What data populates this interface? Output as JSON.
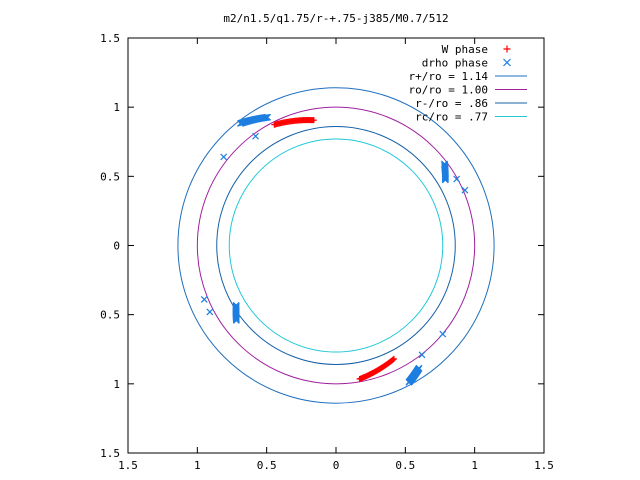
{
  "chart_data": {
    "type": "scatter",
    "title": "m2/n1.5/q1.75/r-+.75-j385/M0.7/512",
    "xlim": [
      -1.5,
      1.5
    ],
    "ylim": [
      -1.5,
      1.5
    ],
    "x_ticks": [
      -1.5,
      -1,
      -0.5,
      0,
      0.5,
      1,
      1.5
    ],
    "y_ticks": [
      -1.5,
      -1,
      -0.5,
      0,
      0.5,
      1,
      1.5
    ],
    "x_tick_labels": [
      "1.5",
      "1",
      "0.5",
      "0",
      "0.5",
      "1",
      "1.5"
    ],
    "y_tick_labels": [
      "1.5",
      "1",
      "0.5",
      "0",
      "0.5",
      "1",
      "1.5"
    ],
    "grid": false,
    "legend_position": "top-right",
    "circles": [
      {
        "name": "r+/ro = 1.14",
        "radius": 1.14,
        "color": "#1f6fbf"
      },
      {
        "name": "ro/ro = 1.00",
        "radius": 1.0,
        "color": "#a020a0"
      },
      {
        "name": "r-/ro = .86",
        "radius": 0.86,
        "color": "#1560a8"
      },
      {
        "name": "rc/ro = .77",
        "radius": 0.77,
        "color": "#20c8d8"
      }
    ],
    "series": [
      {
        "name": "W phase",
        "marker": "+",
        "color": "#ff0000",
        "arcs": [
          {
            "r_from": 0.92,
            "r_to": 0.98,
            "angle_from": 100,
            "angle_to": 117
          },
          {
            "r_from": 0.92,
            "r_to": 0.98,
            "angle_from": -63,
            "angle_to": -80
          }
        ]
      },
      {
        "name": "drho phase",
        "marker": "x",
        "color": "#1e7fe0",
        "arcs": [
          {
            "r_from": 1.05,
            "r_to": 1.12,
            "angle_from": 118,
            "angle_to": 128
          },
          {
            "r_from": 0.92,
            "r_to": 0.98,
            "angle_from": 31,
            "angle_to": 37
          },
          {
            "r_from": 0.84,
            "r_to": 0.9,
            "angle_from": 211,
            "angle_to": 217
          },
          {
            "r_from": 1.07,
            "r_to": 1.12,
            "angle_from": -56,
            "angle_to": -62
          }
        ],
        "extra_points": [
          {
            "x": -0.58,
            "y": 0.79
          },
          {
            "x": -0.81,
            "y": 0.64
          },
          {
            "x": -0.95,
            "y": -0.39
          },
          {
            "x": -0.91,
            "y": -0.48
          },
          {
            "x": 0.93,
            "y": 0.4
          },
          {
            "x": 0.87,
            "y": 0.48
          },
          {
            "x": 0.77,
            "y": -0.64
          },
          {
            "x": 0.62,
            "y": -0.79
          }
        ]
      }
    ]
  }
}
